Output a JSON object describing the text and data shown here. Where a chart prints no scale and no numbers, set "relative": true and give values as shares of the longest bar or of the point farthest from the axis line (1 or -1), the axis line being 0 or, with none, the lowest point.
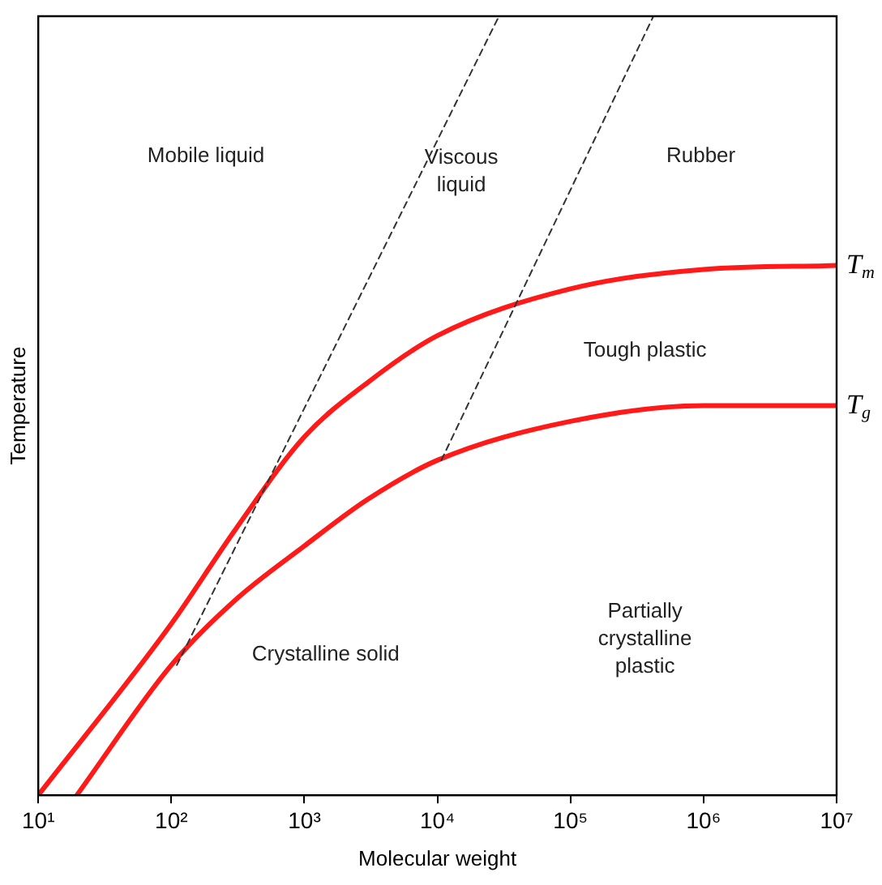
{
  "chart_data": {
    "type": "line",
    "relative": true,
    "xlabel": "Molecular weight",
    "ylabel": "Temperature",
    "log": "x",
    "xlim": [
      10,
      10000000
    ],
    "xticks": [
      {
        "value": 10,
        "label": "10¹"
      },
      {
        "value": 100,
        "label": "10²"
      },
      {
        "value": 1000,
        "label": "10³"
      },
      {
        "value": 10000,
        "label": "10⁴"
      },
      {
        "value": 100000,
        "label": "10⁵"
      },
      {
        "value": 1000000,
        "label": "10⁶"
      },
      {
        "value": 10000000,
        "label": "10⁷"
      }
    ],
    "grid": false,
    "legend": false,
    "marker": "none",
    "series": [
      {
        "name": "T$_{m}$",
        "color": "#ff1a1a",
        "x": [
          10,
          100,
          300,
          1000,
          3000,
          10000,
          100000,
          1000000,
          10000000
        ],
        "values": [
          0,
          0.22,
          0.34,
          0.46,
          0.53,
          0.59,
          0.65,
          0.675,
          0.68
        ]
      },
      {
        "name": "T$_{g}$",
        "color": "#ff1a1a",
        "x": [
          19.5,
          100,
          300,
          1000,
          3000,
          10000,
          100000,
          1000000,
          10000000
        ],
        "values": [
          0,
          0.167,
          0.25,
          0.32,
          0.38,
          0.43,
          0.48,
          0.5,
          0.5
        ]
      },
      {
        "color": "#333333",
        "line_style": "dashed",
        "x": [
          110,
          29000
        ],
        "values": [
          0.167,
          1
        ]
      },
      {
        "color": "#333333",
        "line_style": "dashed",
        "x": [
          10700,
          420000
        ],
        "values": [
          0.43,
          1
        ]
      }
    ],
    "annotations": [
      "Mobile liquid",
      "Viscous\nliquid",
      "Rubber",
      "Tough plastic",
      "Crystalline solid",
      "Partially\ncrystalline\nplastic"
    ]
  }
}
